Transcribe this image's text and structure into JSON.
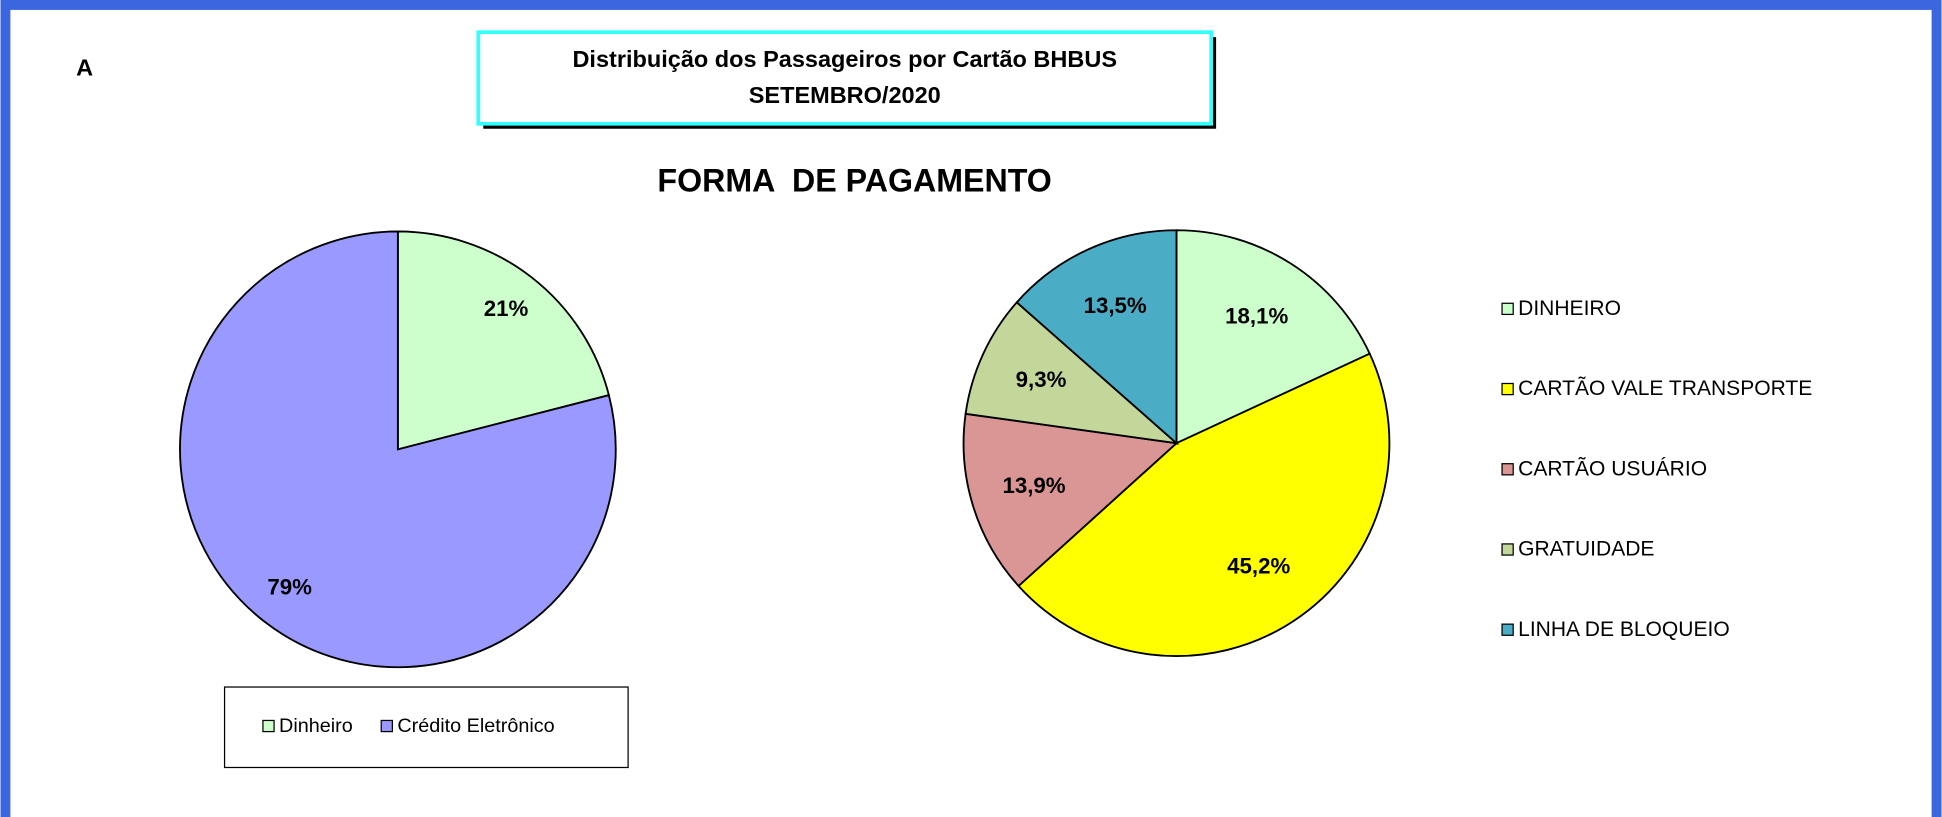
{
  "header": {
    "label": "A",
    "title": "Distribuição dos Passageiros por Cartão BHBUS",
    "subtitle": "SETEMBRO/2020",
    "heading": "FORMA  DE PAGAMENTO"
  },
  "chart_data": [
    {
      "type": "pie",
      "categories": [
        "Dinheiro",
        "Crédito Eletrônico"
      ],
      "values": [
        21,
        79
      ],
      "value_labels": [
        "21%",
        "79%"
      ],
      "colors": [
        "#ccffcc",
        "#9999ff"
      ],
      "legend": "bottom"
    },
    {
      "type": "pie",
      "categories": [
        "DINHEIRO",
        "CARTÃO VALE TRANSPORTE",
        "CARTÃO USUÁRIO",
        "GRATUIDADE",
        "LINHA DE BLOQUEIO"
      ],
      "values": [
        18.1,
        45.2,
        13.9,
        9.3,
        13.5
      ],
      "value_labels": [
        "18,1%",
        "45,2%",
        "13,9%",
        "9,3%",
        "13,5%"
      ],
      "colors": [
        "#ccffcc",
        "#ffff00",
        "#da9694",
        "#c4d79b",
        "#4bacc6"
      ],
      "legend": "right"
    }
  ]
}
